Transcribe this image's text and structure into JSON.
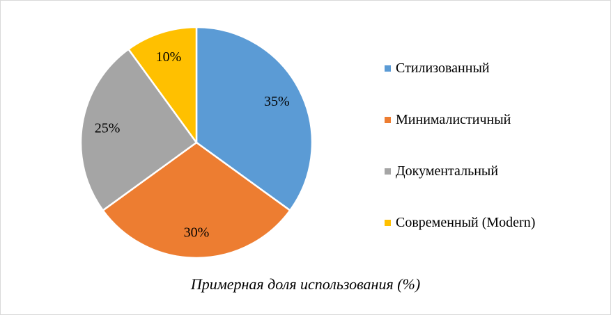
{
  "chart_data": {
    "type": "pie",
    "caption": "Примерная доля использования (%)",
    "slices": [
      {
        "label": "Стилизованный",
        "value": 35,
        "display": "35%",
        "color": "#5B9BD5"
      },
      {
        "label": "Минималистичный",
        "value": 30,
        "display": "30%",
        "color": "#ED7D31"
      },
      {
        "label": "Документальный",
        "value": 25,
        "display": "25%",
        "color": "#A5A5A5"
      },
      {
        "label": "Современный (Modern)",
        "value": 10,
        "display": "10%",
        "color": "#FFC000"
      }
    ],
    "legend_position": "right",
    "start_angle": "top, clockwise"
  }
}
